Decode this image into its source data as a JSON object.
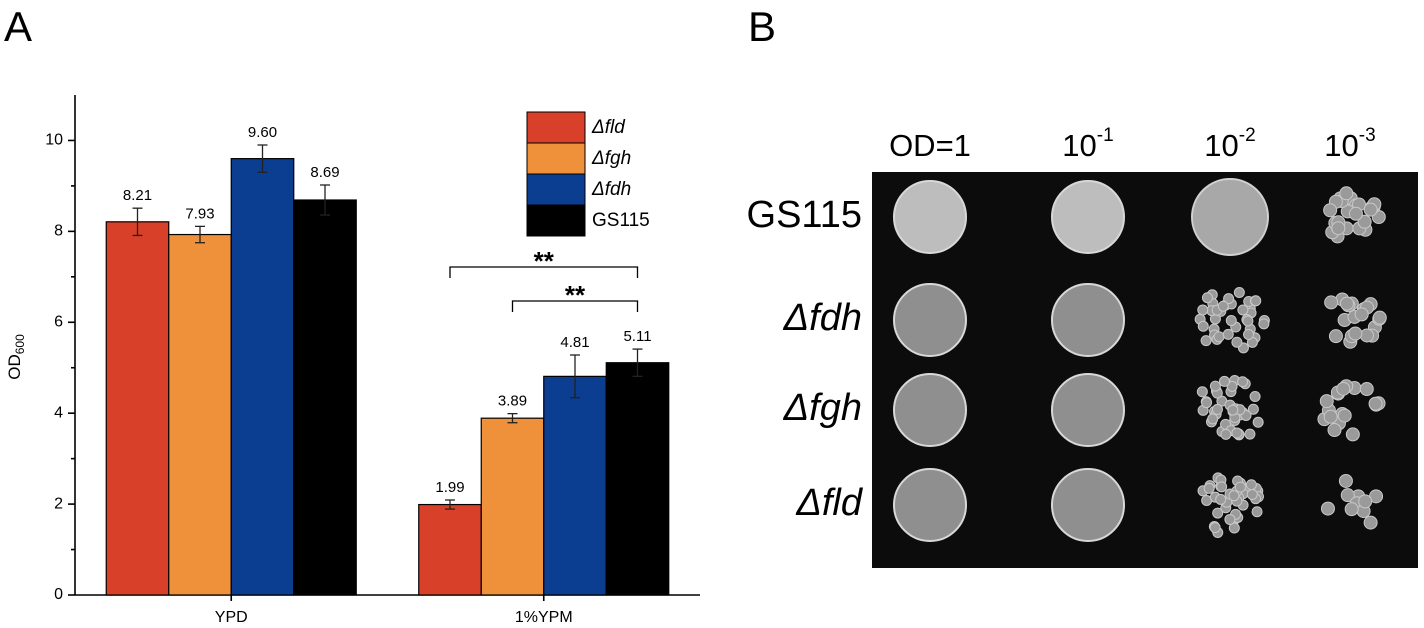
{
  "panel_labels": [
    "A",
    "B"
  ],
  "chart_data": {
    "type": "bar",
    "ylabel": "OD",
    "ylabel_subscript": "600",
    "categories": [
      "YPD",
      "1%YPM"
    ],
    "series": [
      {
        "name": "Δfld",
        "color": "#d8402a",
        "values": [
          8.21,
          1.99
        ],
        "value_labels": [
          "8.21",
          "1.99"
        ],
        "errors": [
          0.3,
          0.1
        ]
      },
      {
        "name": "Δfgh",
        "color": "#ee913a",
        "values": [
          7.93,
          3.89
        ],
        "value_labels": [
          "7.93",
          "3.89"
        ],
        "errors": [
          0.18,
          0.1
        ]
      },
      {
        "name": "Δfdh",
        "color": "#0b3d91",
        "values": [
          9.6,
          4.81
        ],
        "value_labels": [
          "9.60",
          "4.81"
        ],
        "errors": [
          0.3,
          0.47
        ]
      },
      {
        "name": "GS115",
        "color": "#000000",
        "values": [
          8.69,
          5.11
        ],
        "value_labels": [
          "8.69",
          "5.11"
        ],
        "errors": [
          0.33,
          0.3
        ]
      }
    ],
    "ylim": [
      0,
      11
    ],
    "yticks": [
      0,
      2,
      4,
      6,
      8,
      10
    ],
    "minor_yticks": [
      1,
      3,
      5,
      7,
      9
    ],
    "annotations": [
      "**",
      "**"
    ]
  },
  "spot_assay": {
    "columns": [
      {
        "base": "OD=1"
      },
      {
        "base": "10",
        "exponent": "-1"
      },
      {
        "base": "10",
        "exponent": "-2"
      },
      {
        "base": "10",
        "exponent": "-3"
      }
    ],
    "rows": [
      "GS115",
      "Δfdh",
      "Δfgh",
      "Δfld"
    ]
  }
}
